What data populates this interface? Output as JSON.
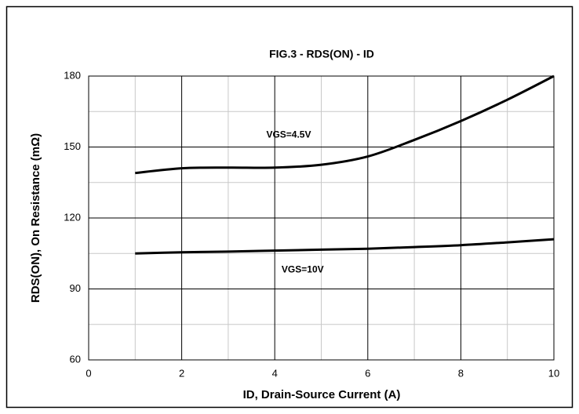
{
  "chart_data": {
    "type": "line",
    "title": "FIG.3 - RDS(ON) - ID",
    "xlabel": "ID, Drain-Source Current (A)",
    "ylabel": "RDS(ON), On Resistance (mΩ)",
    "x": [
      1,
      2,
      3,
      4,
      5,
      6,
      7,
      8,
      9,
      10
    ],
    "series": [
      {
        "name": "VGS=4.5V",
        "color": "#000000",
        "values": [
          139,
          141,
          141.3,
          141.3,
          142.5,
          146,
          153,
          161,
          170,
          180
        ]
      },
      {
        "name": "VGS=10V",
        "color": "#000000",
        "values": [
          105,
          105.5,
          105.8,
          106.2,
          106.6,
          107,
          107.7,
          108.5,
          109.7,
          111
        ]
      }
    ],
    "xlim": [
      0,
      10
    ],
    "xticks": [
      0,
      2,
      4,
      6,
      8,
      10
    ],
    "minor_xticks": [
      1,
      3,
      5,
      7,
      9
    ],
    "ylim": [
      60,
      180
    ],
    "yticks": [
      60,
      90,
      120,
      150,
      180
    ],
    "minor_yticks": [
      75,
      105,
      135,
      165
    ],
    "grid": true
  }
}
